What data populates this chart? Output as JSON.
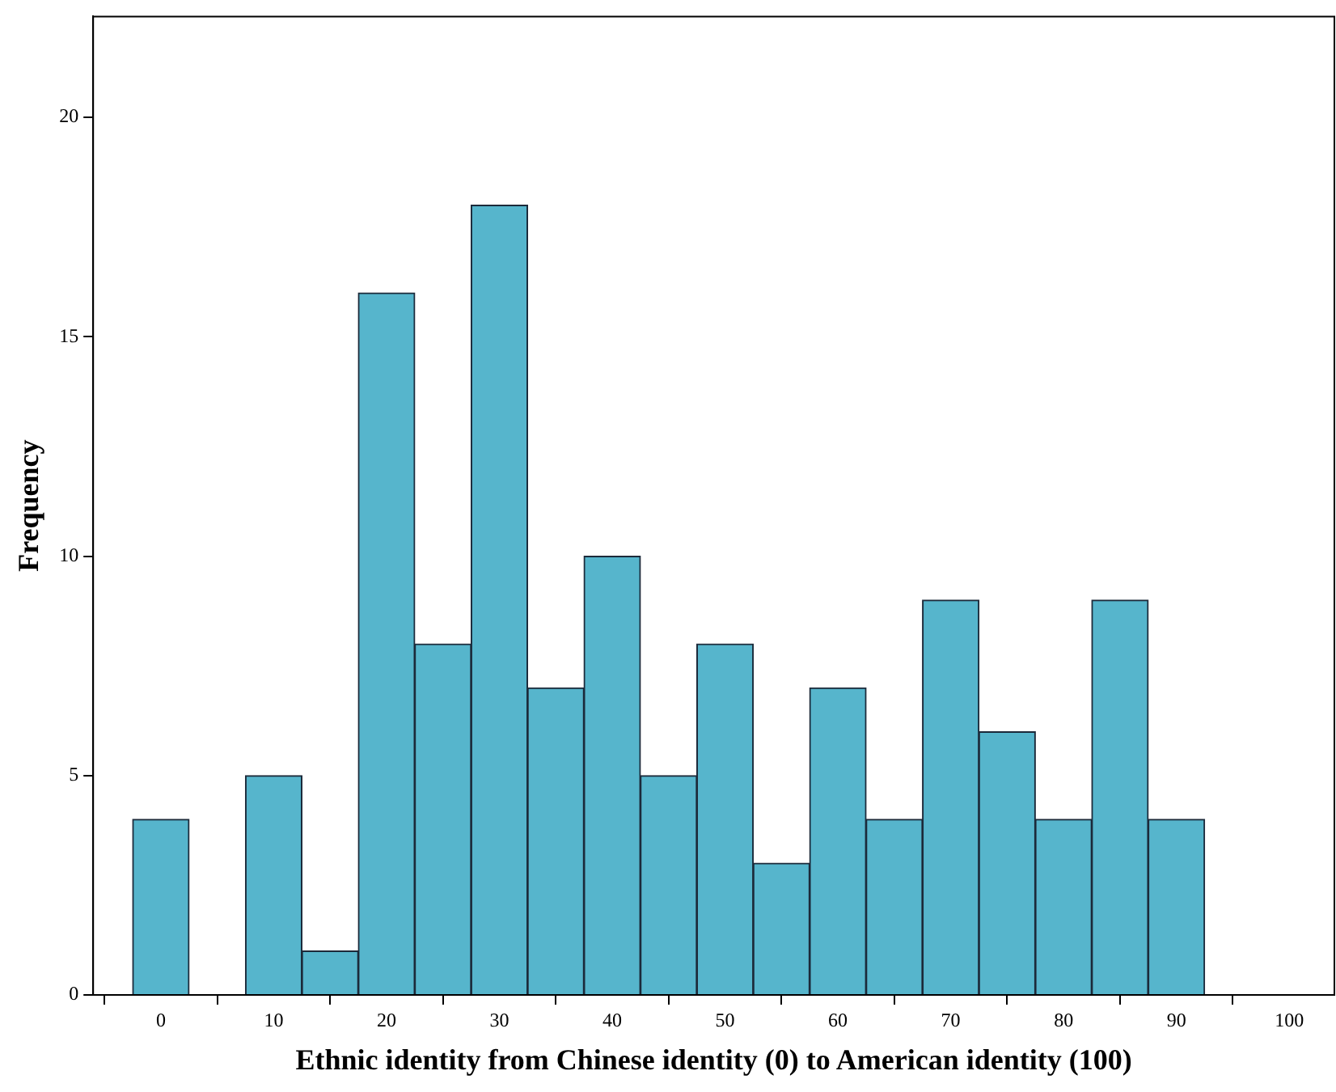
{
  "chart_data": {
    "type": "histogram",
    "xlabel": "Ethnic identity from Chinese identity (0) to American identity (100)",
    "ylabel": "Frequency",
    "bins": [
      -2.5,
      2.5,
      7.5,
      12.5,
      17.5,
      22.5,
      27.5,
      32.5,
      37.5,
      42.5,
      47.5,
      52.5,
      57.5,
      62.5,
      67.5,
      72.5,
      77.5,
      82.5,
      87.5,
      92.5
    ],
    "values": [
      4,
      0,
      5,
      1,
      16,
      8,
      18,
      7,
      10,
      5,
      8,
      3,
      7,
      4,
      9,
      6,
      4,
      9,
      4
    ],
    "color": "#56b5cc",
    "xlim": [
      -6,
      104
    ],
    "ylim": [
      0,
      22.3
    ],
    "xticks": [
      0,
      10,
      20,
      30,
      40,
      50,
      60,
      70,
      80,
      90,
      100
    ],
    "yticks": [
      0,
      5,
      10,
      15,
      20
    ],
    "grid": false,
    "legend": false
  }
}
